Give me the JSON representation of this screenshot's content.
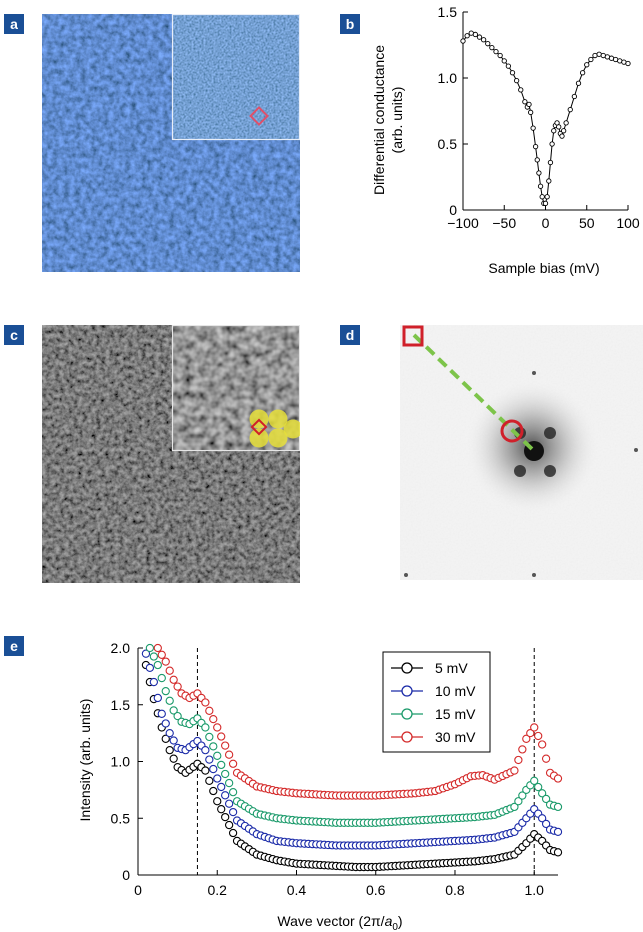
{
  "labels": {
    "a": "a",
    "b": "b",
    "c": "c",
    "d": "d",
    "e": "e"
  },
  "panel_b": {
    "chart_data": {
      "type": "line",
      "xlabel": "Sample bias (mV)",
      "ylabel_line1": "Differential conductance",
      "ylabel_line2": "(arb. units)",
      "xlim": [
        -100,
        100
      ],
      "ylim": [
        0,
        1.5
      ],
      "xticks": [
        -100,
        -50,
        0,
        50,
        100
      ],
      "xtick_labels": [
        "−100",
        "−50",
        "0",
        "50",
        "100"
      ],
      "yticks": [
        0,
        0.5,
        1.0,
        1.5
      ],
      "ytick_labels": [
        "0",
        "0.5",
        "1.0",
        "1.5"
      ],
      "x": [
        -100,
        -95,
        -90,
        -85,
        -80,
        -75,
        -70,
        -65,
        -60,
        -55,
        -50,
        -45,
        -40,
        -35,
        -30,
        -25,
        -22,
        -20,
        -18,
        -15,
        -12,
        -10,
        -8,
        -6,
        -4,
        -2,
        0,
        2,
        4,
        6,
        8,
        10,
        12,
        14,
        16,
        18,
        20,
        22,
        25,
        30,
        35,
        40,
        45,
        50,
        55,
        60,
        65,
        70,
        75,
        80,
        85,
        90,
        95,
        100
      ],
      "y": [
        1.28,
        1.32,
        1.34,
        1.33,
        1.31,
        1.29,
        1.26,
        1.23,
        1.2,
        1.17,
        1.13,
        1.09,
        1.04,
        0.98,
        0.91,
        0.82,
        0.78,
        0.8,
        0.74,
        0.62,
        0.48,
        0.38,
        0.28,
        0.18,
        0.1,
        0.05,
        0.05,
        0.1,
        0.22,
        0.36,
        0.5,
        0.6,
        0.64,
        0.66,
        0.63,
        0.58,
        0.56,
        0.6,
        0.66,
        0.76,
        0.86,
        0.96,
        1.04,
        1.1,
        1.14,
        1.17,
        1.18,
        1.17,
        1.16,
        1.15,
        1.14,
        1.13,
        1.12,
        1.11
      ]
    }
  },
  "panel_e": {
    "chart_data": {
      "type": "scatter",
      "xlabel": "Wave vector (2π/a₀)",
      "ylabel": "Intensity (arb. units)",
      "xlim": [
        0,
        1.06
      ],
      "ylim": [
        0,
        2.0
      ],
      "xticks": [
        0,
        0.2,
        0.4,
        0.6,
        0.8,
        1.0
      ],
      "xtick_labels": [
        "0",
        "0.2",
        "0.4",
        "0.6",
        "0.8",
        "1.0"
      ],
      "yticks": [
        0,
        0.5,
        1.0,
        1.5,
        2.0
      ],
      "ytick_labels": [
        "0",
        "0.5",
        "1.0",
        "1.5",
        "2.0"
      ],
      "dashed_lines_x": [
        0.15,
        1.0
      ],
      "legend_position": "top-right",
      "series": [
        {
          "name": "5 mV",
          "color": "#000000",
          "points": [
            [
              0.02,
              1.85
            ],
            [
              0.04,
              1.55
            ],
            [
              0.06,
              1.3
            ],
            [
              0.08,
              1.1
            ],
            [
              0.1,
              0.95
            ],
            [
              0.12,
              0.9
            ],
            [
              0.15,
              0.98
            ],
            [
              0.17,
              0.92
            ],
            [
              0.2,
              0.65
            ],
            [
              0.25,
              0.3
            ],
            [
              0.3,
              0.18
            ],
            [
              0.35,
              0.13
            ],
            [
              0.4,
              0.1
            ],
            [
              0.45,
              0.09
            ],
            [
              0.5,
              0.08
            ],
            [
              0.55,
              0.07
            ],
            [
              0.6,
              0.07
            ],
            [
              0.65,
              0.08
            ],
            [
              0.7,
              0.09
            ],
            [
              0.75,
              0.1
            ],
            [
              0.8,
              0.11
            ],
            [
              0.85,
              0.12
            ],
            [
              0.9,
              0.14
            ],
            [
              0.95,
              0.18
            ],
            [
              0.98,
              0.28
            ],
            [
              1.0,
              0.36
            ],
            [
              1.02,
              0.3
            ],
            [
              1.04,
              0.22
            ],
            [
              1.06,
              0.2
            ]
          ]
        },
        {
          "name": "10 mV",
          "color": "#1a2aa8",
          "points": [
            [
              0.02,
              1.95
            ],
            [
              0.04,
              1.7
            ],
            [
              0.06,
              1.42
            ],
            [
              0.08,
              1.25
            ],
            [
              0.1,
              1.12
            ],
            [
              0.12,
              1.1
            ],
            [
              0.15,
              1.18
            ],
            [
              0.17,
              1.1
            ],
            [
              0.2,
              0.85
            ],
            [
              0.25,
              0.48
            ],
            [
              0.3,
              0.36
            ],
            [
              0.35,
              0.3
            ],
            [
              0.4,
              0.28
            ],
            [
              0.45,
              0.27
            ],
            [
              0.5,
              0.26
            ],
            [
              0.55,
              0.26
            ],
            [
              0.6,
              0.26
            ],
            [
              0.65,
              0.27
            ],
            [
              0.7,
              0.28
            ],
            [
              0.75,
              0.29
            ],
            [
              0.8,
              0.3
            ],
            [
              0.85,
              0.31
            ],
            [
              0.9,
              0.33
            ],
            [
              0.95,
              0.38
            ],
            [
              0.98,
              0.5
            ],
            [
              1.0,
              0.58
            ],
            [
              1.02,
              0.5
            ],
            [
              1.04,
              0.4
            ],
            [
              1.06,
              0.38
            ]
          ]
        },
        {
          "name": "15 mV",
          "color": "#1a9a6a",
          "points": [
            [
              0.03,
              2.0
            ],
            [
              0.05,
              1.85
            ],
            [
              0.07,
              1.62
            ],
            [
              0.09,
              1.45
            ],
            [
              0.11,
              1.35
            ],
            [
              0.13,
              1.33
            ],
            [
              0.15,
              1.38
            ],
            [
              0.17,
              1.3
            ],
            [
              0.2,
              1.05
            ],
            [
              0.25,
              0.65
            ],
            [
              0.3,
              0.54
            ],
            [
              0.35,
              0.5
            ],
            [
              0.4,
              0.48
            ],
            [
              0.45,
              0.47
            ],
            [
              0.5,
              0.46
            ],
            [
              0.55,
              0.46
            ],
            [
              0.6,
              0.46
            ],
            [
              0.65,
              0.47
            ],
            [
              0.7,
              0.48
            ],
            [
              0.75,
              0.49
            ],
            [
              0.8,
              0.5
            ],
            [
              0.85,
              0.51
            ],
            [
              0.9,
              0.53
            ],
            [
              0.95,
              0.6
            ],
            [
              0.98,
              0.75
            ],
            [
              1.0,
              0.83
            ],
            [
              1.02,
              0.72
            ],
            [
              1.04,
              0.62
            ],
            [
              1.06,
              0.6
            ]
          ]
        },
        {
          "name": "30 mV",
          "color": "#d42a2a",
          "points": [
            [
              0.05,
              2.0
            ],
            [
              0.07,
              1.88
            ],
            [
              0.09,
              1.72
            ],
            [
              0.11,
              1.6
            ],
            [
              0.13,
              1.56
            ],
            [
              0.15,
              1.6
            ],
            [
              0.17,
              1.52
            ],
            [
              0.2,
              1.3
            ],
            [
              0.25,
              0.9
            ],
            [
              0.3,
              0.78
            ],
            [
              0.35,
              0.74
            ],
            [
              0.4,
              0.72
            ],
            [
              0.45,
              0.71
            ],
            [
              0.5,
              0.7
            ],
            [
              0.55,
              0.7
            ],
            [
              0.6,
              0.7
            ],
            [
              0.65,
              0.71
            ],
            [
              0.7,
              0.72
            ],
            [
              0.75,
              0.74
            ],
            [
              0.8,
              0.8
            ],
            [
              0.84,
              0.87
            ],
            [
              0.87,
              0.88
            ],
            [
              0.9,
              0.84
            ],
            [
              0.95,
              0.92
            ],
            [
              0.98,
              1.2
            ],
            [
              1.0,
              1.3
            ],
            [
              1.02,
              1.15
            ],
            [
              1.04,
              0.9
            ],
            [
              1.06,
              0.85
            ]
          ]
        }
      ]
    }
  },
  "colors": {
    "tag_bg": "#1a4f96",
    "marker_red": "#d0202a",
    "dashed_green": "#7dc44a"
  }
}
